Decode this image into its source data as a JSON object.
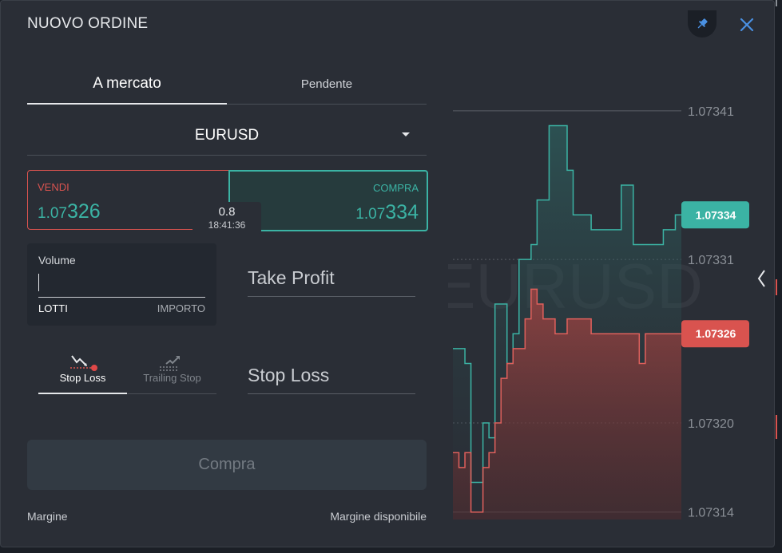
{
  "header": {
    "title": "NUOVO ORDINE",
    "pin_icon": "pin-icon",
    "close_icon": "close-icon"
  },
  "tabs": [
    {
      "label": "A mercato"
    },
    {
      "label": "Pendente"
    }
  ],
  "symbol": {
    "name": "EURUSD"
  },
  "sell": {
    "label": "VENDI",
    "price_prefix": "1.07",
    "price_suffix": "326"
  },
  "buy": {
    "label": "COMPRA",
    "price_prefix": "1.07",
    "price_suffix": "334"
  },
  "spread": {
    "value": "0.8",
    "time": "18:41:36"
  },
  "volume": {
    "label": "Volume",
    "value": "",
    "unit_lots": "LOTTI",
    "unit_amount": "IMPORTO"
  },
  "take_profit": {
    "label": "Take Profit"
  },
  "stop_loss": {
    "label": "Stop Loss"
  },
  "stop_tabs": [
    {
      "label": "Stop Loss"
    },
    {
      "label": "Trailing Stop"
    }
  ],
  "submit": {
    "label": "Compra"
  },
  "footer": {
    "margin": "Margine",
    "available_margin": "Margine disponibile"
  },
  "colors": {
    "sell": "#d9534f",
    "buy": "#3bb3a4",
    "background": "#2a2e36"
  },
  "chart_data": {
    "type": "line",
    "watermark": "EURUSD",
    "y_ticks": [
      "1.07341",
      "1.07331",
      "1.07320",
      "1.07314"
    ],
    "ylim": [
      1.073135,
      1.073425
    ],
    "series": [
      {
        "name": "buy",
        "values": [
          1.07325,
          1.07325,
          1.07324,
          1.07316,
          1.07316,
          1.0732,
          1.07319,
          1.07328,
          1.07328,
          1.07324,
          1.07326,
          1.07331,
          1.07331,
          1.07332,
          1.07335,
          1.07335,
          1.0734,
          1.0734,
          1.0734,
          1.07337,
          1.07334,
          1.07334,
          1.07334,
          1.07333,
          1.07333,
          1.07333,
          1.07333,
          1.07333,
          1.07336,
          1.07336,
          1.07332,
          1.07332,
          1.07332,
          1.07332,
          1.07332,
          1.07333,
          1.07333,
          1.07334,
          1.07334
        ]
      },
      {
        "name": "sell",
        "values": [
          1.07318,
          1.07317,
          1.07318,
          1.07314,
          1.07314,
          1.07317,
          1.07318,
          1.0732,
          1.07323,
          1.07324,
          1.07325,
          1.07325,
          1.07327,
          1.07329,
          1.07328,
          1.07327,
          1.07327,
          1.07326,
          1.07326,
          1.07327,
          1.07327,
          1.07327,
          1.07327,
          1.07326,
          1.07326,
          1.07326,
          1.07326,
          1.07326,
          1.07326,
          1.07326,
          1.07326,
          1.07324,
          1.07326,
          1.07326,
          1.07326,
          1.07326,
          1.07326,
          1.07326,
          1.07326
        ]
      }
    ],
    "buy_label": "1.07334",
    "sell_label": "1.07326"
  }
}
